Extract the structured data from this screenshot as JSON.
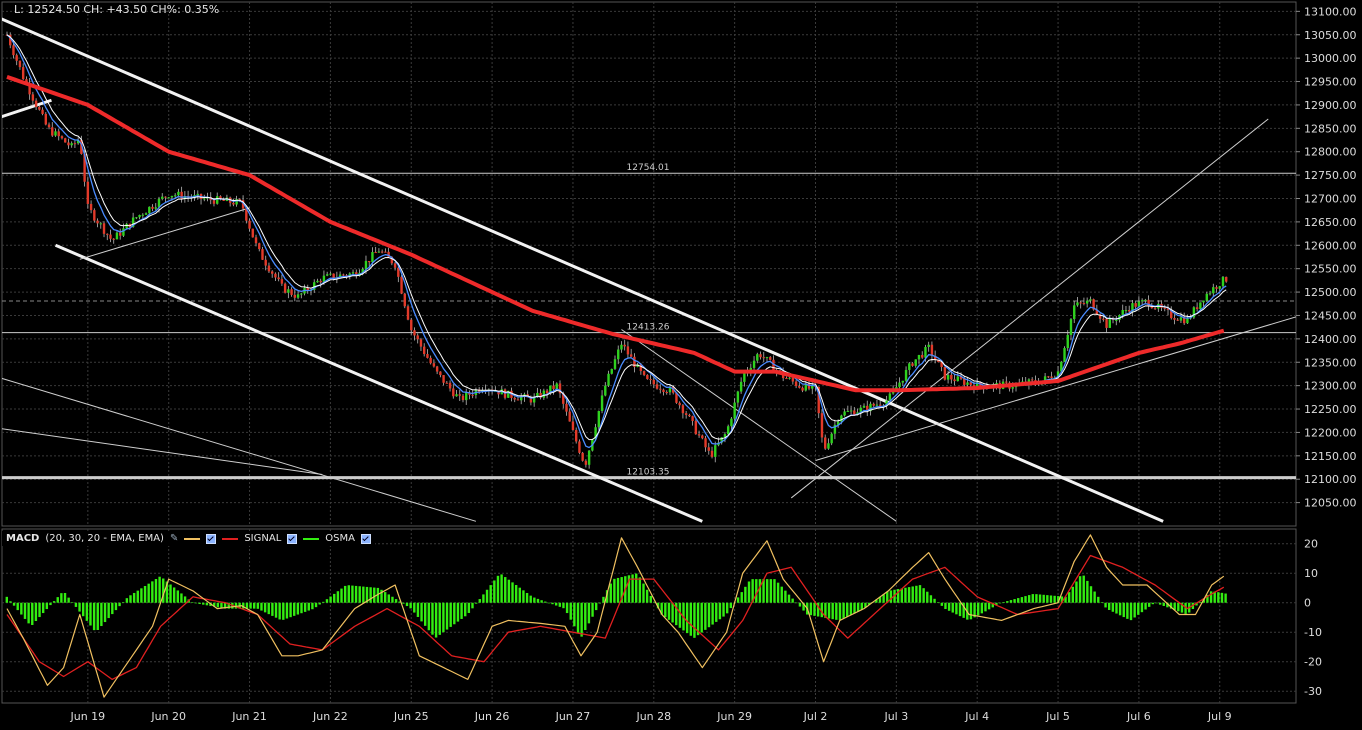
{
  "header": {
    "ohlc_text": "L: 12524.50 CH: +43.50 CH%: 0.35%"
  },
  "macd_legend": {
    "title": "MACD",
    "params": "(20, 30, 20 - EMA, EMA)",
    "signal_label": "SIGNAL",
    "osma_label": "OSMA",
    "colors": {
      "macd": "#f0c060",
      "signal": "#e02020",
      "osma": "#33ee11"
    }
  },
  "chart_data": [
    {
      "type": "line",
      "subtype": "candlestick-with-moving-averages",
      "x_labels": [
        "Jun 19",
        "Jun 20",
        "Jun 21",
        "Jun 22",
        "Jun 25",
        "Jun 26",
        "Jun 27",
        "Jun 28",
        "Jun 29",
        "Jul 2",
        "Jul 3",
        "Jul 4",
        "Jul 5",
        "Jul 6",
        "Jul 9"
      ],
      "ylim": [
        12000,
        13120
      ],
      "y_ticks": [
        12050,
        12100,
        12150,
        12200,
        12250,
        12300,
        12350,
        12400,
        12450,
        12500,
        12550,
        12600,
        12650,
        12700,
        12750,
        12800,
        12850,
        12900,
        12950,
        13000,
        13050,
        13100
      ],
      "y_tick_labels": [
        "12050.00",
        "12100.00",
        "12150.00",
        "12200.00",
        "12250.00",
        "12300.00",
        "12350.00",
        "12400.00",
        "12450.00",
        "12500.00",
        "12550.00",
        "12600.00",
        "12650.00",
        "12700.00",
        "12750.00",
        "12800.00",
        "12850.00",
        "12900.00",
        "12950.00",
        "13000.00",
        "13050.00",
        "13100.00"
      ],
      "grid": true,
      "price_path": [
        [
          0,
          13050
        ],
        [
          0.2,
          12960
        ],
        [
          0.5,
          12850
        ],
        [
          0.8,
          12810
        ],
        [
          0.9,
          12830
        ],
        [
          1.0,
          12680
        ],
        [
          1.3,
          12610
        ],
        [
          1.6,
          12660
        ],
        [
          2.0,
          12710
        ],
        [
          2.4,
          12700
        ],
        [
          2.9,
          12690
        ],
        [
          3.1,
          12590
        ],
        [
          3.4,
          12510
        ],
        [
          3.6,
          12490
        ],
        [
          3.9,
          12530
        ],
        [
          4.3,
          12540
        ],
        [
          4.6,
          12590
        ],
        [
          4.8,
          12560
        ],
        [
          5.0,
          12420
        ],
        [
          5.3,
          12330
        ],
        [
          5.6,
          12270
        ],
        [
          5.9,
          12300
        ],
        [
          6.2,
          12280
        ],
        [
          6.5,
          12270
        ],
        [
          6.8,
          12300
        ],
        [
          7.0,
          12200
        ],
        [
          7.15,
          12130
        ],
        [
          7.4,
          12300
        ],
        [
          7.6,
          12390
        ],
        [
          7.9,
          12310
        ],
        [
          8.2,
          12290
        ],
        [
          8.4,
          12240
        ],
        [
          8.7,
          12150
        ],
        [
          8.9,
          12200
        ],
        [
          9.1,
          12320
        ],
        [
          9.3,
          12370
        ],
        [
          9.6,
          12320
        ],
        [
          9.8,
          12300
        ],
        [
          10.0,
          12290
        ],
        [
          10.1,
          12160
        ],
        [
          10.3,
          12240
        ],
        [
          10.6,
          12250
        ],
        [
          10.9,
          12270
        ],
        [
          11.2,
          12350
        ],
        [
          11.4,
          12380
        ],
        [
          11.6,
          12320
        ],
        [
          12.0,
          12300
        ],
        [
          12.4,
          12300
        ],
        [
          12.8,
          12310
        ],
        [
          13.0,
          12330
        ],
        [
          13.2,
          12470
        ],
        [
          13.4,
          12480
        ],
        [
          13.6,
          12430
        ],
        [
          13.9,
          12470
        ],
        [
          14.1,
          12480
        ],
        [
          14.4,
          12450
        ],
        [
          14.6,
          12440
        ],
        [
          14.8,
          12490
        ],
        [
          15.0,
          12520
        ],
        [
          15.1,
          12530
        ]
      ],
      "ema_slow": [
        [
          0,
          12960
        ],
        [
          1.0,
          12900
        ],
        [
          2.0,
          12800
        ],
        [
          3.0,
          12750
        ],
        [
          4.0,
          12650
        ],
        [
          5.0,
          12580
        ],
        [
          5.5,
          12540
        ],
        [
          6.5,
          12460
        ],
        [
          7.5,
          12410
        ],
        [
          8.5,
          12370
        ],
        [
          9.0,
          12330
        ],
        [
          9.5,
          12330
        ],
        [
          10.5,
          12290
        ],
        [
          11.0,
          12290
        ],
        [
          12.0,
          12295
        ],
        [
          13.0,
          12310
        ],
        [
          13.5,
          12340
        ],
        [
          14.0,
          12370
        ],
        [
          14.5,
          12390
        ],
        [
          15.1,
          12420
        ]
      ],
      "annotations": [
        {
          "type": "hline",
          "value": 12754.01,
          "label": "12754.01"
        },
        {
          "type": "hline",
          "value": 12413.26,
          "label": "12413.26"
        },
        {
          "type": "hline",
          "value": 12103.35,
          "label": "12103.35"
        },
        {
          "type": "hline",
          "value": 12481.0,
          "label": ""
        }
      ],
      "trendlines": [
        {
          "style": "thick",
          "from": [
            -0.15,
            13090
          ],
          "to": [
            14.3,
            12010
          ]
        },
        {
          "style": "thick",
          "from": [
            0.6,
            12600
          ],
          "to": [
            8.6,
            12010
          ]
        },
        {
          "style": "thick",
          "from": [
            -0.15,
            12870
          ],
          "to": [
            0.55,
            12910
          ]
        },
        {
          "style": "thin",
          "from": [
            0.9,
            12570
          ],
          "to": [
            3.0,
            12680
          ]
        },
        {
          "style": "thin",
          "from": [
            -0.15,
            12320
          ],
          "to": [
            5.8,
            12010
          ]
        },
        {
          "style": "thin",
          "from": [
            -0.15,
            12210
          ],
          "to": [
            3.9,
            12110
          ]
        },
        {
          "style": "thin",
          "from": [
            7.6,
            12420
          ],
          "to": [
            11.0,
            12010
          ]
        },
        {
          "style": "thin",
          "from": [
            9.7,
            12060
          ],
          "to": [
            15.6,
            12870
          ]
        },
        {
          "style": "thin",
          "from": [
            10.0,
            12140
          ],
          "to": [
            16.0,
            12450
          ]
        }
      ]
    },
    {
      "type": "line",
      "subtype": "macd-histogram",
      "title": "MACD",
      "ylim": [
        -34,
        25
      ],
      "y_ticks": [
        20,
        10,
        0,
        -10,
        -20,
        -30
      ],
      "y_tick_labels": [
        "20",
        "10",
        "0",
        "-10",
        "-20",
        "-30"
      ],
      "grid": true,
      "series": [
        {
          "name": "MACD",
          "points": [
            [
              0,
              -2
            ],
            [
              0.2,
              -12
            ],
            [
              0.5,
              -28
            ],
            [
              0.7,
              -22
            ],
            [
              0.9,
              -4
            ],
            [
              1.2,
              -32
            ],
            [
              1.5,
              -20
            ],
            [
              1.8,
              -8
            ],
            [
              2.0,
              8
            ],
            [
              2.3,
              4
            ],
            [
              2.6,
              -2
            ],
            [
              2.9,
              -1
            ],
            [
              3.1,
              -4
            ],
            [
              3.4,
              -18
            ],
            [
              3.6,
              -18
            ],
            [
              3.9,
              -16
            ],
            [
              4.3,
              -2
            ],
            [
              4.6,
              3
            ],
            [
              4.8,
              6
            ],
            [
              5.1,
              -18
            ],
            [
              5.4,
              -22
            ],
            [
              5.7,
              -26
            ],
            [
              6.0,
              -8
            ],
            [
              6.2,
              -6
            ],
            [
              6.6,
              -7
            ],
            [
              6.9,
              -8
            ],
            [
              7.1,
              -18
            ],
            [
              7.3,
              -10
            ],
            [
              7.6,
              22
            ],
            [
              7.8,
              12
            ],
            [
              8.1,
              -4
            ],
            [
              8.3,
              -10
            ],
            [
              8.6,
              -22
            ],
            [
              8.9,
              -10
            ],
            [
              9.1,
              10
            ],
            [
              9.4,
              21
            ],
            [
              9.6,
              8
            ],
            [
              9.9,
              -2
            ],
            [
              10.1,
              -20
            ],
            [
              10.3,
              -6
            ],
            [
              10.6,
              -2
            ],
            [
              10.9,
              4
            ],
            [
              11.2,
              12
            ],
            [
              11.4,
              17
            ],
            [
              11.6,
              8
            ],
            [
              11.9,
              -4
            ],
            [
              12.3,
              -6
            ],
            [
              12.7,
              -2
            ],
            [
              13.0,
              0
            ],
            [
              13.2,
              14
            ],
            [
              13.4,
              23
            ],
            [
              13.6,
              12
            ],
            [
              13.8,
              6
            ],
            [
              14.1,
              6
            ],
            [
              14.5,
              -4
            ],
            [
              14.7,
              -4
            ],
            [
              14.9,
              6
            ],
            [
              15.1,
              10
            ]
          ]
        },
        {
          "name": "SIGNAL",
          "points": [
            [
              0,
              -4
            ],
            [
              0.4,
              -20
            ],
            [
              0.7,
              -25
            ],
            [
              1.0,
              -20
            ],
            [
              1.3,
              -26
            ],
            [
              1.6,
              -22
            ],
            [
              1.9,
              -8
            ],
            [
              2.3,
              2
            ],
            [
              2.7,
              0
            ],
            [
              3.1,
              -4
            ],
            [
              3.5,
              -14
            ],
            [
              3.9,
              -16
            ],
            [
              4.3,
              -8
            ],
            [
              4.7,
              -2
            ],
            [
              5.1,
              -8
            ],
            [
              5.5,
              -18
            ],
            [
              5.9,
              -20
            ],
            [
              6.2,
              -10
            ],
            [
              6.6,
              -8
            ],
            [
              7.0,
              -10
            ],
            [
              7.4,
              -12
            ],
            [
              7.7,
              8
            ],
            [
              8.0,
              8
            ],
            [
              8.4,
              -6
            ],
            [
              8.8,
              -16
            ],
            [
              9.1,
              -6
            ],
            [
              9.4,
              10
            ],
            [
              9.7,
              12
            ],
            [
              10.1,
              -4
            ],
            [
              10.4,
              -12
            ],
            [
              10.8,
              -2
            ],
            [
              11.2,
              8
            ],
            [
              11.6,
              12
            ],
            [
              12.0,
              2
            ],
            [
              12.5,
              -4
            ],
            [
              13.0,
              -2
            ],
            [
              13.4,
              16
            ],
            [
              13.8,
              12
            ],
            [
              14.2,
              6
            ],
            [
              14.6,
              -2
            ],
            [
              14.9,
              3
            ],
            [
              15.1,
              6
            ]
          ]
        },
        {
          "name": "OSMA",
          "points": [
            [
              0,
              2
            ],
            [
              0.3,
              -8
            ],
            [
              0.7,
              4
            ],
            [
              1.1,
              -10
            ],
            [
              1.5,
              2
            ],
            [
              1.9,
              9
            ],
            [
              2.3,
              0
            ],
            [
              2.7,
              -2
            ],
            [
              3.1,
              -2
            ],
            [
              3.4,
              -6
            ],
            [
              3.8,
              -2
            ],
            [
              4.2,
              6
            ],
            [
              4.6,
              5
            ],
            [
              5.0,
              -2
            ],
            [
              5.3,
              -12
            ],
            [
              5.7,
              -4
            ],
            [
              6.1,
              10
            ],
            [
              6.5,
              2
            ],
            [
              6.9,
              -2
            ],
            [
              7.1,
              -12
            ],
            [
              7.5,
              8
            ],
            [
              7.8,
              10
            ],
            [
              8.1,
              -4
            ],
            [
              8.5,
              -12
            ],
            [
              8.9,
              -4
            ],
            [
              9.2,
              8
            ],
            [
              9.5,
              8
            ],
            [
              9.9,
              -4
            ],
            [
              10.3,
              -6
            ],
            [
              10.6,
              -2
            ],
            [
              10.9,
              4
            ],
            [
              11.3,
              6
            ],
            [
              11.6,
              -2
            ],
            [
              11.9,
              -6
            ],
            [
              12.3,
              0
            ],
            [
              12.7,
              3
            ],
            [
              13.1,
              2
            ],
            [
              13.3,
              10
            ],
            [
              13.6,
              -2
            ],
            [
              13.9,
              -6
            ],
            [
              14.2,
              0
            ],
            [
              14.6,
              -4
            ],
            [
              14.9,
              4
            ],
            [
              15.1,
              3
            ]
          ]
        }
      ]
    }
  ]
}
